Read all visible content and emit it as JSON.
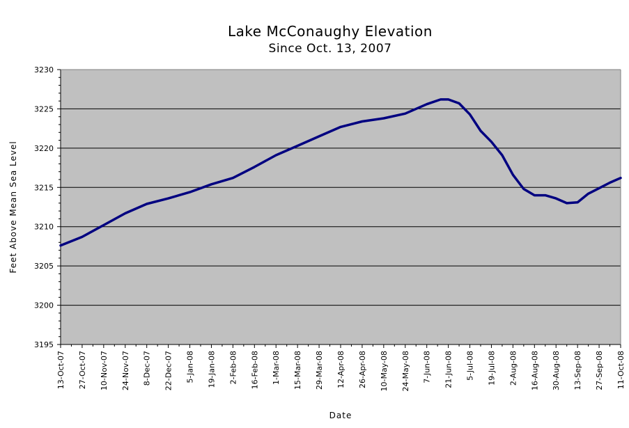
{
  "chart_data": {
    "type": "line",
    "title": "Lake McConaughy  Elevation",
    "subtitle": "Since Oct. 13, 2007",
    "xlabel": "Date",
    "ylabel": "Feet Above Mean Sea Level",
    "ylim": [
      3195,
      3230
    ],
    "y_ticks": [
      "3195",
      "3200",
      "3205",
      "3210",
      "3215",
      "3220",
      "3225",
      "3230"
    ],
    "grid": true,
    "plot_background": "#c0c0c0",
    "line_color": "#000080",
    "x_tick_labels": [
      "13-Oct-07",
      "27-Oct-07",
      "10-Nov-07",
      "24-Nov-07",
      "8-Dec-07",
      "22-Dec-07",
      "5-Jan-08",
      "19-Jan-08",
      "2-Feb-08",
      "16-Feb-08",
      "1-Mar-08",
      "15-Mar-08",
      "29-Mar-08",
      "12-Apr-08",
      "26-Apr-08",
      "10-May-08",
      "24-May-08",
      "7-Jun-08",
      "21-Jun-08",
      "5-Jul-08",
      "19-Jul-08",
      "2-Aug-08",
      "16-Aug-08",
      "30-Aug-08",
      "13-Sep-08",
      "27-Sep-08",
      "11-Oct-08"
    ],
    "x_start": "2007-10-13",
    "x_end": "2008-10-11",
    "series": [
      {
        "values": [
          {
            "x": "2007-10-13",
            "y": 3207.6
          },
          {
            "x": "2007-10-27",
            "y": 3208.7
          },
          {
            "x": "2007-11-10",
            "y": 3210.2
          },
          {
            "x": "2007-11-24",
            "y": 3211.7
          },
          {
            "x": "2007-12-08",
            "y": 3212.9
          },
          {
            "x": "2007-12-22",
            "y": 3213.6
          },
          {
            "x": "2008-01-05",
            "y": 3214.4
          },
          {
            "x": "2008-01-19",
            "y": 3215.4
          },
          {
            "x": "2008-02-02",
            "y": 3216.2
          },
          {
            "x": "2008-02-16",
            "y": 3217.6
          },
          {
            "x": "2008-03-01",
            "y": 3219.1
          },
          {
            "x": "2008-03-15",
            "y": 3220.3
          },
          {
            "x": "2008-03-29",
            "y": 3221.5
          },
          {
            "x": "2008-04-12",
            "y": 3222.7
          },
          {
            "x": "2008-04-26",
            "y": 3223.4
          },
          {
            "x": "2008-05-10",
            "y": 3223.8
          },
          {
            "x": "2008-05-24",
            "y": 3224.4
          },
          {
            "x": "2008-06-07",
            "y": 3225.6
          },
          {
            "x": "2008-06-16",
            "y": 3226.2
          },
          {
            "x": "2008-06-21",
            "y": 3226.2
          },
          {
            "x": "2008-06-28",
            "y": 3225.7
          },
          {
            "x": "2008-07-05",
            "y": 3224.3
          },
          {
            "x": "2008-07-12",
            "y": 3222.2
          },
          {
            "x": "2008-07-19",
            "y": 3220.8
          },
          {
            "x": "2008-07-26",
            "y": 3219.1
          },
          {
            "x": "2008-08-02",
            "y": 3216.6
          },
          {
            "x": "2008-08-09",
            "y": 3214.8
          },
          {
            "x": "2008-08-16",
            "y": 3214.0
          },
          {
            "x": "2008-08-23",
            "y": 3214.0
          },
          {
            "x": "2008-08-30",
            "y": 3213.6
          },
          {
            "x": "2008-09-06",
            "y": 3213.0
          },
          {
            "x": "2008-09-13",
            "y": 3213.1
          },
          {
            "x": "2008-09-20",
            "y": 3214.2
          },
          {
            "x": "2008-09-27",
            "y": 3214.9
          },
          {
            "x": "2008-10-04",
            "y": 3215.6
          },
          {
            "x": "2008-10-11",
            "y": 3216.2
          }
        ]
      }
    ]
  }
}
